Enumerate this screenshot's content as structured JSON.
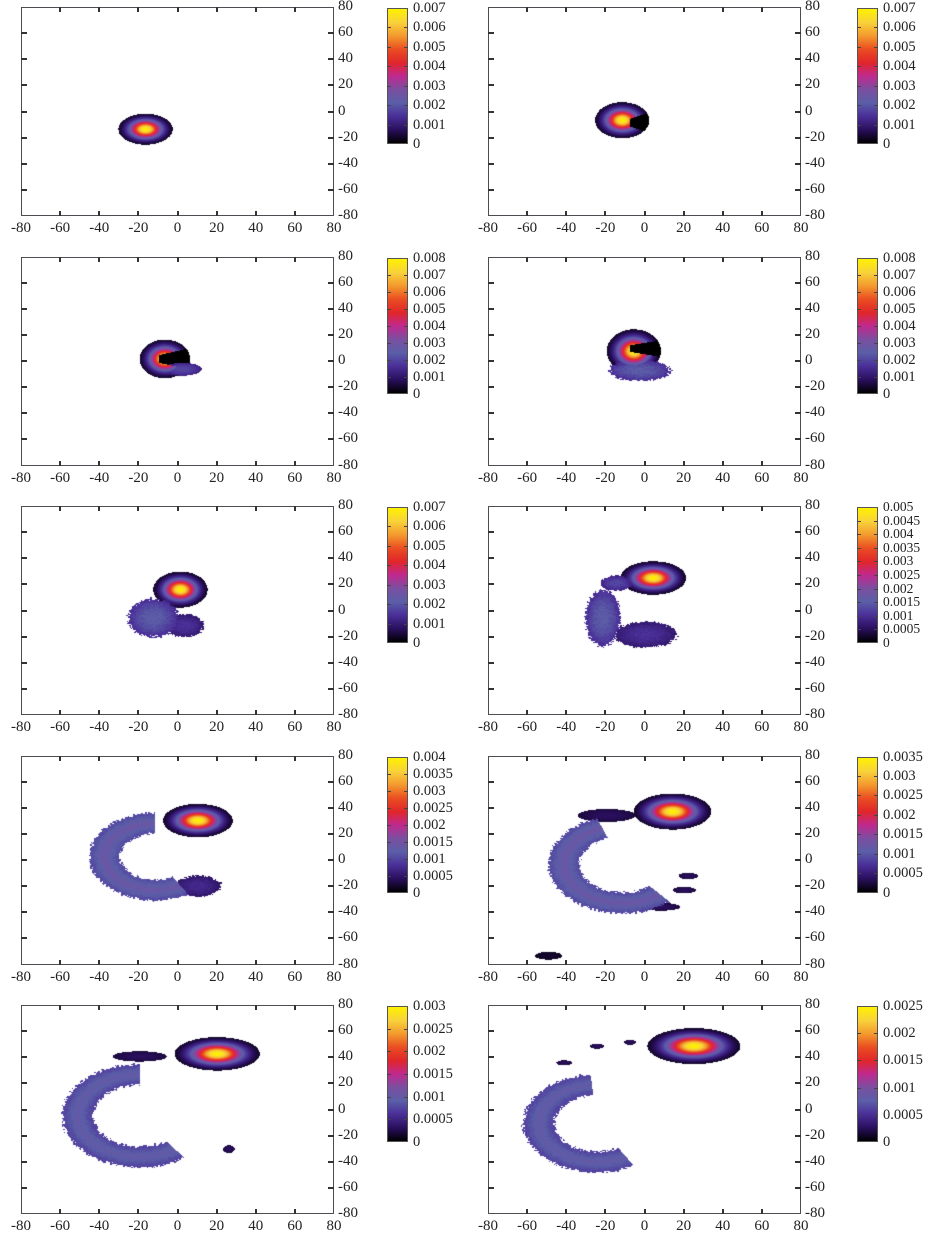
{
  "colormap": [
    "#000000",
    "#2a0f5e",
    "#4a2f98",
    "#5b5ea8",
    "#7a4fa0",
    "#c0298e",
    "#e0262a",
    "#ea4e22",
    "#f39a2e",
    "#f8d23a",
    "#fff100"
  ],
  "chart_data": [
    {
      "type": "heatmap",
      "panel": 1,
      "x_ticks": [
        "-80",
        "-60",
        "-40",
        "-20",
        "0",
        "20",
        "40",
        "60",
        "80"
      ],
      "y_ticks": [
        "80",
        "60",
        "40",
        "20",
        "0",
        "-20",
        "-40",
        "-60",
        "-80"
      ],
      "xlim": [
        -80,
        80
      ],
      "ylim": [
        -80,
        80
      ],
      "colorbar_ticks": [
        "0.007",
        "0.006",
        "0.005",
        "0.004",
        "0.003",
        "0.002",
        "0.001",
        "0"
      ],
      "colorbar_range": [
        0,
        0.007
      ],
      "peak": {
        "x": -17,
        "y": -13
      }
    },
    {
      "type": "heatmap",
      "panel": 2,
      "x_ticks": [
        "-80",
        "-60",
        "-40",
        "-20",
        "0",
        "20",
        "40",
        "60",
        "80"
      ],
      "y_ticks": [
        "80",
        "60",
        "40",
        "20",
        "0",
        "-20",
        "-40",
        "-60",
        "-80"
      ],
      "xlim": [
        -80,
        80
      ],
      "ylim": [
        -80,
        80
      ],
      "colorbar_ticks": [
        "0.007",
        "0.006",
        "0.005",
        "0.004",
        "0.003",
        "0.002",
        "0.001",
        "0"
      ],
      "colorbar_range": [
        0,
        0.007
      ],
      "peak": {
        "x": -13,
        "y": -6
      }
    },
    {
      "type": "heatmap",
      "panel": 3,
      "x_ticks": [
        "-80",
        "-60",
        "-40",
        "-20",
        "0",
        "20",
        "40",
        "60",
        "80"
      ],
      "y_ticks": [
        "80",
        "60",
        "40",
        "20",
        "0",
        "-20",
        "-40",
        "-60",
        "-80"
      ],
      "xlim": [
        -80,
        80
      ],
      "ylim": [
        -80,
        80
      ],
      "colorbar_ticks": [
        "0.008",
        "0.007",
        "0.006",
        "0.005",
        "0.004",
        "0.003",
        "0.002",
        "0.001",
        "0"
      ],
      "colorbar_range": [
        0,
        0.008
      ],
      "peak": {
        "x": -7,
        "y": 3
      }
    },
    {
      "type": "heatmap",
      "panel": 4,
      "x_ticks": [
        "-80",
        "-60",
        "-40",
        "-20",
        "0",
        "20",
        "40",
        "60",
        "80"
      ],
      "y_ticks": [
        "80",
        "60",
        "40",
        "20",
        "0",
        "-20",
        "-40",
        "-60",
        "-80"
      ],
      "xlim": [
        -80,
        80
      ],
      "ylim": [
        -80,
        80
      ],
      "colorbar_ticks": [
        "0.008",
        "0.007",
        "0.006",
        "0.005",
        "0.004",
        "0.003",
        "0.002",
        "0.001",
        "0"
      ],
      "colorbar_range": [
        0,
        0.008
      ],
      "peak": {
        "x": -5,
        "y": 10
      }
    },
    {
      "type": "heatmap",
      "panel": 5,
      "x_ticks": [
        "-80",
        "-60",
        "-40",
        "-20",
        "0",
        "20",
        "40",
        "60",
        "80"
      ],
      "y_ticks": [
        "80",
        "60",
        "40",
        "20",
        "0",
        "-20",
        "-40",
        "-60",
        "-80"
      ],
      "xlim": [
        -80,
        80
      ],
      "ylim": [
        -80,
        80
      ],
      "colorbar_ticks": [
        "0.007",
        "0.006",
        "0.005",
        "0.004",
        "0.003",
        "0.002",
        "0.001",
        "0"
      ],
      "colorbar_range": [
        0,
        0.007
      ],
      "peak": {
        "x": -1,
        "y": 18
      }
    },
    {
      "type": "heatmap",
      "panel": 6,
      "x_ticks": [
        "-80",
        "-60",
        "-40",
        "-20",
        "0",
        "20",
        "40",
        "60",
        "80"
      ],
      "y_ticks": [
        "80",
        "60",
        "40",
        "20",
        "0",
        "-20",
        "-40",
        "-60",
        "-80"
      ],
      "xlim": [
        -80,
        80
      ],
      "ylim": [
        -80,
        80
      ],
      "colorbar_ticks": [
        "0.005",
        "0.0045",
        "0.004",
        "0.0035",
        "0.003",
        "0.0025",
        "0.002",
        "0.0015",
        "0.001",
        "0.0005",
        "0"
      ],
      "colorbar_range": [
        0,
        0.005
      ],
      "peak": {
        "x": 3,
        "y": 25
      }
    },
    {
      "type": "heatmap",
      "panel": 7,
      "x_ticks": [
        "-80",
        "-60",
        "-40",
        "-20",
        "0",
        "20",
        "40",
        "60",
        "80"
      ],
      "y_ticks": [
        "80",
        "60",
        "40",
        "20",
        "0",
        "-20",
        "-40",
        "-60",
        "-80"
      ],
      "xlim": [
        -80,
        80
      ],
      "ylim": [
        -80,
        80
      ],
      "colorbar_ticks": [
        "0.004",
        "0.0035",
        "0.003",
        "0.0025",
        "0.002",
        "0.0015",
        "0.001",
        "0.0005",
        "0"
      ],
      "colorbar_range": [
        0,
        0.004
      ],
      "peak": {
        "x": 7,
        "y": 31
      }
    },
    {
      "type": "heatmap",
      "panel": 8,
      "x_ticks": [
        "-80",
        "-60",
        "-40",
        "-20",
        "0",
        "20",
        "40",
        "60",
        "80"
      ],
      "y_ticks": [
        "80",
        "60",
        "40",
        "20",
        "0",
        "-20",
        "-40",
        "-60",
        "-80"
      ],
      "xlim": [
        -80,
        80
      ],
      "ylim": [
        -80,
        80
      ],
      "colorbar_ticks": [
        "0.0035",
        "0.003",
        "0.0025",
        "0.002",
        "0.0015",
        "0.001",
        "0.0005",
        "0"
      ],
      "colorbar_range": [
        0,
        0.0035
      ],
      "peak": {
        "x": 12,
        "y": 38
      }
    },
    {
      "type": "heatmap",
      "panel": 9,
      "x_ticks": [
        "-80",
        "-60",
        "-40",
        "-20",
        "0",
        "20",
        "40",
        "60",
        "80"
      ],
      "y_ticks": [
        "80",
        "60",
        "40",
        "20",
        "0",
        "-20",
        "-40",
        "-60",
        "-80"
      ],
      "xlim": [
        -80,
        80
      ],
      "ylim": [
        -80,
        80
      ],
      "colorbar_ticks": [
        "0.003",
        "0.0025",
        "0.002",
        "0.0015",
        "0.001",
        "0.0005",
        "0"
      ],
      "colorbar_range": [
        0,
        0.003
      ],
      "peak": {
        "x": 17,
        "y": 45
      }
    },
    {
      "type": "heatmap",
      "panel": 10,
      "x_ticks": [
        "-80",
        "-60",
        "-40",
        "-20",
        "0",
        "20",
        "40",
        "60",
        "80"
      ],
      "y_ticks": [
        "80",
        "60",
        "40",
        "20",
        "0",
        "-20",
        "-40",
        "-60",
        "-80"
      ],
      "xlim": [
        -80,
        80
      ],
      "ylim": [
        -80,
        80
      ],
      "colorbar_ticks": [
        "0.0025",
        "0.002",
        "0.0015",
        "0.001",
        "0.0005",
        "0"
      ],
      "colorbar_range": [
        0,
        0.0025
      ],
      "peak": {
        "x": 22,
        "y": 51
      }
    }
  ]
}
